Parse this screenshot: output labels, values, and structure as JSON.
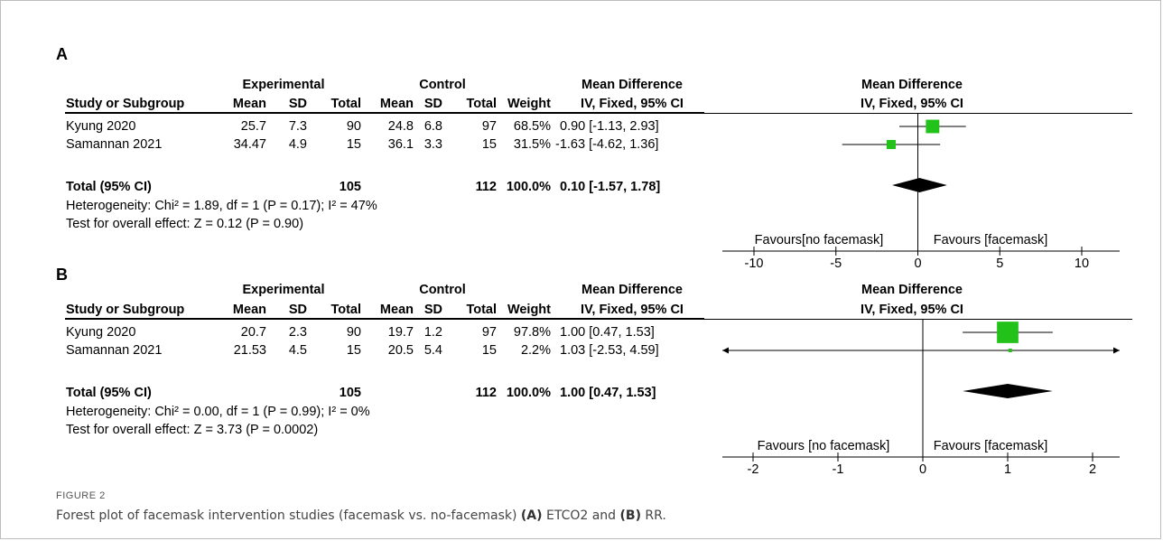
{
  "figure_label": "FIGURE 2",
  "caption": {
    "prefix": "Forest plot of facemask intervention studies (facemask vs. no-facemask) ",
    "label_a": "(A)",
    "mid": " ETCO2 and ",
    "label_b": "(B)",
    "suffix": " RR."
  },
  "headers": {
    "experimental": "Experimental",
    "control": "Control",
    "mean_difference": "Mean Difference",
    "study": "Study or Subgroup",
    "mean": "Mean",
    "sd": "SD",
    "total": "Total",
    "weight": "Weight",
    "ci_method": "IV, Fixed, 95% CI"
  },
  "panels": [
    {
      "label": "A",
      "studies": [
        {
          "name": "Kyung 2020",
          "exp_mean": "25.7",
          "exp_sd": "7.3",
          "exp_total": "90",
          "ctl_mean": "24.8",
          "ctl_sd": "6.8",
          "ctl_total": "97",
          "weight": "68.5%",
          "ci": "0.90 [-1.13, 2.93]"
        },
        {
          "name": "Samannan 2021",
          "exp_mean": "34.47",
          "exp_sd": "4.9",
          "exp_total": "15",
          "ctl_mean": "36.1",
          "ctl_sd": "3.3",
          "ctl_total": "15",
          "weight": "31.5%",
          "ci": "-1.63 [-4.62, 1.36]"
        }
      ],
      "total": {
        "name": "Total (95% CI)",
        "exp_total": "105",
        "ctl_total": "112",
        "weight": "100.0%",
        "ci": "0.10 [-1.57, 1.78]"
      },
      "heterogeneity": "Heterogeneity: Chi² = 1.89, df = 1 (P = 0.17); I² = 47%",
      "overall_effect": "Test for overall effect: Z = 0.12 (P = 0.90)",
      "favours_left": "Favours[no facemask]",
      "favours_right": "Favours [facemask]"
    },
    {
      "label": "B",
      "studies": [
        {
          "name": "Kyung 2020",
          "exp_mean": "20.7",
          "exp_sd": "2.3",
          "exp_total": "90",
          "ctl_mean": "19.7",
          "ctl_sd": "1.2",
          "ctl_total": "97",
          "weight": "97.8%",
          "ci": "1.00 [0.47, 1.53]"
        },
        {
          "name": "Samannan 2021",
          "exp_mean": "21.53",
          "exp_sd": "4.5",
          "exp_total": "15",
          "ctl_mean": "20.5",
          "ctl_sd": "5.4",
          "ctl_total": "15",
          "weight": "2.2%",
          "ci": "1.03 [-2.53, 4.59]"
        }
      ],
      "total": {
        "name": "Total (95% CI)",
        "exp_total": "105",
        "ctl_total": "112",
        "weight": "100.0%",
        "ci": "1.00 [0.47, 1.53]"
      },
      "heterogeneity": "Heterogeneity: Chi² = 0.00, df = 1 (P = 0.99); I² = 0%",
      "overall_effect": "Test for overall effect: Z = 3.73 (P = 0.0002)",
      "favours_left": "Favours [no facemask]",
      "favours_right": "Favours [facemask]"
    }
  ],
  "chart_data": [
    {
      "type": "forest",
      "panel": "A",
      "xlim": [
        -10,
        10
      ],
      "ticks": [
        -10,
        -5,
        0,
        5,
        10
      ],
      "tick_labels": [
        "-10",
        "-5",
        "0",
        "5",
        "10"
      ],
      "marker_color": "#22c21a",
      "studies": [
        {
          "name": "Kyung 2020",
          "estimate": 0.9,
          "lower": -1.13,
          "upper": 2.93,
          "weight": 68.5
        },
        {
          "name": "Samannan 2021",
          "estimate": -1.63,
          "lower": -4.62,
          "upper": 1.36,
          "weight": 31.5
        }
      ],
      "pooled": {
        "estimate": 0.1,
        "lower": -1.57,
        "upper": 1.78
      }
    },
    {
      "type": "forest",
      "panel": "B",
      "xlim": [
        -2.5,
        2.5
      ],
      "ticks": [
        -2,
        -1,
        0,
        1,
        2
      ],
      "tick_labels": [
        "-2",
        "-1",
        "0",
        "1",
        "2"
      ],
      "marker_color": "#22c21a",
      "studies": [
        {
          "name": "Kyung 2020",
          "estimate": 1.0,
          "lower": 0.47,
          "upper": 1.53,
          "weight": 97.8
        },
        {
          "name": "Samannan 2021",
          "estimate": 1.03,
          "lower": -2.53,
          "upper": 4.59,
          "weight": 2.2
        }
      ],
      "pooled": {
        "estimate": 1.0,
        "lower": 0.47,
        "upper": 1.53
      }
    }
  ]
}
